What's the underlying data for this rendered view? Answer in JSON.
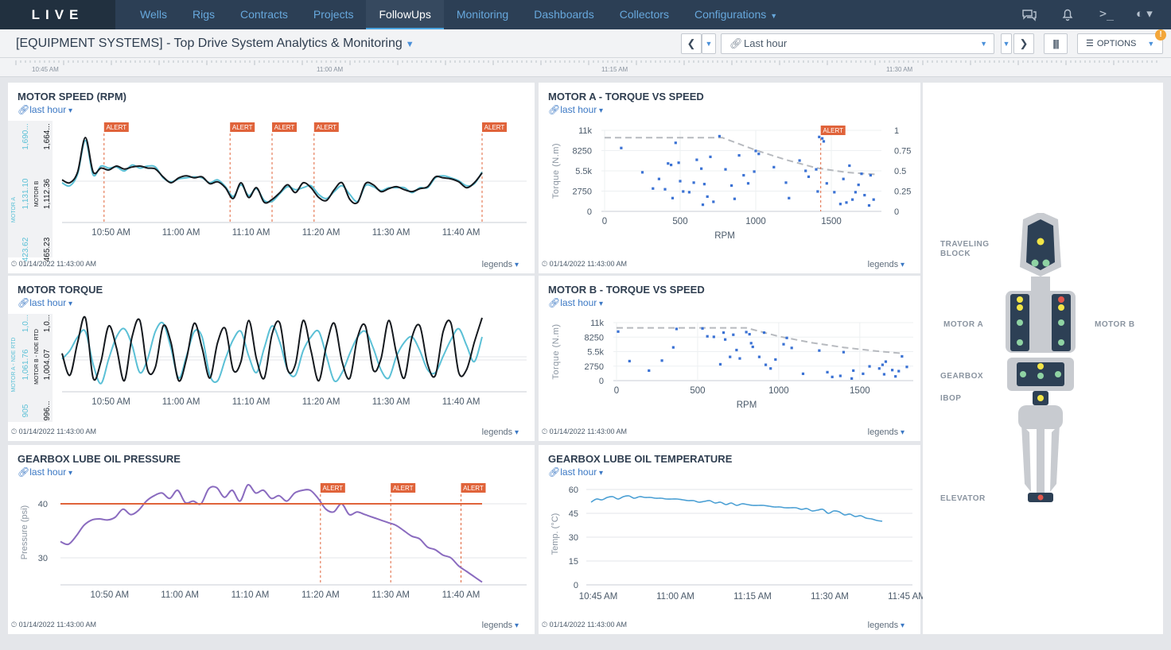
{
  "app": {
    "logo": "LIVE"
  },
  "nav": {
    "items": [
      "Wells",
      "Rigs",
      "Contracts",
      "Projects",
      "FollowUps",
      "Monitoring",
      "Dashboards",
      "Collectors",
      "Configurations"
    ],
    "active": "FollowUps"
  },
  "toolbar": {
    "page_title": "[EQUIPMENT SYSTEMS] - Top Drive System Analytics & Monitoring",
    "time_range": "Last hour",
    "options_label": "OPTIONS"
  },
  "timeline": {
    "labels": [
      "10:45 AM",
      "11:00 AM",
      "11:15 AM",
      "11:30 AM"
    ]
  },
  "common": {
    "range_link": "last hour",
    "timestamp": "01/14/2022 11:43:00 AM",
    "legends": "legends",
    "alert": "ALERT",
    "time_ticks": [
      "10:50 AM",
      "11:00 AM",
      "11:10 AM",
      "11:20 AM",
      "11:30 AM",
      "11:40 AM"
    ]
  },
  "panels": {
    "motor_speed": {
      "title": "MOTOR SPEED (RPM)"
    },
    "motor_a_tvs": {
      "title": "MOTOR A - TORQUE VS SPEED"
    },
    "motor_torque": {
      "title": "MOTOR TORQUE"
    },
    "motor_b_tvs": {
      "title": "MOTOR B - TORQUE VS SPEED"
    },
    "lube_pressure": {
      "title": "GEARBOX LUBE OIL PRESSURE"
    },
    "lube_temp": {
      "title": "GEARBOX LUBE OIL TEMPERATURE"
    }
  },
  "rig": {
    "labels": {
      "traveling_block": "TRAVELING\nBLOCK",
      "motor_a": "MOTOR A",
      "motor_b": "MOTOR B",
      "gearbox": "GEARBOX",
      "ibop": "IBOP",
      "elevator": "ELEVATOR"
    },
    "colors": {
      "yellow": "#f2e547",
      "green": "#8fd3a3",
      "red": "#e2574c",
      "body": "#c8cbd0",
      "dark": "#2d4055"
    }
  },
  "chart_data": [
    {
      "type": "line",
      "title": "MOTOR SPEED (RPM)",
      "x_ticks": [
        "10:50 AM",
        "11:00 AM",
        "11:10 AM",
        "11:20 AM",
        "11:30 AM",
        "11:40 AM"
      ],
      "alerts_x": [
        "10:49 AM",
        "11:07 AM",
        "11:13 AM",
        "11:19 AM",
        "11:43 AM"
      ],
      "axis_labels": {
        "motor_a": [
          "423.62",
          "1,131.10",
          "1,690..."
        ],
        "motor_b": [
          "465.23",
          "1,112.36",
          "1,664..."
        ]
      },
      "series": [
        {
          "name": "MOTOR A",
          "color": "#5bc0d6",
          "values": [
            1150,
            1120,
            1240,
            1580,
            1230,
            1320,
            1300,
            1310,
            1270,
            1330,
            1300,
            1320,
            1310,
            1200,
            1160,
            1190,
            1200,
            1210,
            1200,
            1150,
            1180,
            1110,
            1010,
            1130,
            1020,
            1090,
            970,
            960,
            1040,
            1110,
            1080,
            1100,
            1120,
            1030,
            990,
            1060,
            1120,
            1030,
            960,
            1120,
            1110,
            1070,
            1100,
            1100,
            1100,
            1050,
            1100,
            1100,
            1200,
            1220,
            1200,
            1170,
            1120,
            1140,
            1260
          ]
        },
        {
          "name": "MOTOR B",
          "color": "#15191e",
          "values": [
            1180,
            1150,
            1260,
            1610,
            1260,
            1300,
            1280,
            1320,
            1290,
            1310,
            1320,
            1300,
            1290,
            1210,
            1150,
            1200,
            1220,
            1200,
            1210,
            1140,
            1160,
            1100,
            990,
            1150,
            1000,
            1100,
            950,
            980,
            1050,
            1130,
            1050,
            1150,
            1100,
            1000,
            970,
            1080,
            1150,
            980,
            950,
            1140,
            1130,
            1060,
            1090,
            1110,
            1080,
            1060,
            1090,
            1110,
            1210,
            1200,
            1190,
            1160,
            1100,
            1150,
            1250
          ]
        }
      ]
    },
    {
      "type": "scatter",
      "title": "MOTOR A - TORQUE VS SPEED",
      "xlabel": "RPM",
      "ylabel": "Torque (N.m)",
      "xlim": [
        0,
        1800
      ],
      "ylim": [
        0,
        11000
      ],
      "x_ticks": [
        0,
        500,
        1000,
        1500
      ],
      "y_ticks": [
        "0",
        "2750",
        "5.5k",
        "8250",
        "11k"
      ],
      "y2_ticks": [
        "0",
        "0.25",
        "0.5",
        "0.75",
        "1"
      ],
      "alert_x": 1430,
      "limit_curve": {
        "x": [
          0,
          780,
          1000,
          1200,
          1400,
          1600,
          1800
        ],
        "y": [
          10000,
          10000,
          8300,
          7000,
          5900,
          5300,
          5000
        ]
      },
      "points": [
        [
          110,
          8600
        ],
        [
          250,
          5300
        ],
        [
          320,
          3100
        ],
        [
          360,
          4400
        ],
        [
          400,
          3000
        ],
        [
          420,
          6500
        ],
        [
          440,
          6300
        ],
        [
          450,
          1800
        ],
        [
          470,
          9300
        ],
        [
          490,
          6600
        ],
        [
          500,
          4100
        ],
        [
          520,
          2700
        ],
        [
          560,
          2600
        ],
        [
          590,
          3900
        ],
        [
          610,
          7000
        ],
        [
          640,
          5800
        ],
        [
          650,
          900
        ],
        [
          660,
          3700
        ],
        [
          680,
          2000
        ],
        [
          700,
          7400
        ],
        [
          720,
          1300
        ],
        [
          760,
          10200
        ],
        [
          800,
          5700
        ],
        [
          840,
          3500
        ],
        [
          860,
          1700
        ],
        [
          890,
          7600
        ],
        [
          920,
          4900
        ],
        [
          950,
          3800
        ],
        [
          990,
          5400
        ],
        [
          1000,
          8200
        ],
        [
          1020,
          7800
        ],
        [
          1120,
          6000
        ],
        [
          1200,
          3900
        ],
        [
          1220,
          1800
        ],
        [
          1290,
          6900
        ],
        [
          1330,
          5500
        ],
        [
          1350,
          4700
        ],
        [
          1400,
          5700
        ],
        [
          1410,
          2700
        ],
        [
          1420,
          10100
        ],
        [
          1440,
          9900
        ],
        [
          1450,
          9500
        ],
        [
          1470,
          3800
        ],
        [
          1520,
          2600
        ],
        [
          1560,
          1000
        ],
        [
          1580,
          4400
        ],
        [
          1600,
          1200
        ],
        [
          1620,
          6200
        ],
        [
          1640,
          1600
        ],
        [
          1660,
          2600
        ],
        [
          1680,
          3600
        ],
        [
          1700,
          5100
        ],
        [
          1720,
          2200
        ],
        [
          1750,
          800
        ],
        [
          1760,
          4900
        ],
        [
          1780,
          1600
        ]
      ]
    },
    {
      "type": "line",
      "title": "MOTOR TORQUE",
      "x_ticks": [
        "10:50 AM",
        "11:00 AM",
        "11:10 AM",
        "11:20 AM",
        "11:30 AM",
        "11:40 AM"
      ],
      "axis_labels": {
        "motor_a": [
          "905",
          "1,061.76",
          "1,0..."
        ],
        "motor_b": [
          "996...",
          "1,004.07",
          "1,0..."
        ]
      },
      "series": [
        {
          "name": "MOTOR A - NDE RTD",
          "color": "#5bc0d6",
          "values": [
            1000,
            1030,
            1080,
            1100,
            980,
            910,
            1000,
            1080,
            1110,
            1050,
            950,
            1000,
            1100,
            1130,
            1040,
            930,
            1010,
            1100,
            1080,
            940,
            920,
            1000,
            1070,
            1100,
            1010,
            950,
            1040,
            1120,
            1060,
            960,
            940,
            1030,
            1080,
            1100,
            1010,
            920,
            950,
            1020,
            1080,
            1100,
            1040,
            960,
            930,
            1010,
            1060,
            1080,
            1030,
            960,
            950,
            1010,
            1070,
            1110,
            1050,
            990,
            1080
          ]
        },
        {
          "name": "MOTOR B - NDE RTD",
          "color": "#15191e",
          "values": [
            1020,
            940,
            1060,
            1150,
            930,
            990,
            1120,
            1040,
            920,
            1080,
            1140,
            960,
            970,
            1120,
            1060,
            920,
            1000,
            1130,
            1040,
            930,
            1060,
            1110,
            960,
            990,
            1140,
            1000,
            930,
            1090,
            1130,
            960,
            980,
            1140,
            1030,
            920,
            1050,
            1130,
            990,
            930,
            1080,
            1120,
            960,
            1000,
            1140,
            1020,
            930,
            1080,
            1120,
            980,
            940,
            1100,
            1130,
            950,
            960,
            1060,
            1150
          ]
        }
      ]
    },
    {
      "type": "scatter",
      "title": "MOTOR B - TORQUE VS SPEED",
      "xlabel": "RPM",
      "ylabel": "Torque (N.m)",
      "xlim": [
        0,
        1800
      ],
      "ylim": [
        0,
        11000
      ],
      "x_ticks": [
        0,
        500,
        1000,
        1500
      ],
      "y_ticks": [
        "0",
        "2750",
        "5.5k",
        "8250",
        "11k"
      ],
      "limit_curve": {
        "x": [
          0,
          800,
          1000,
          1200,
          1400,
          1600,
          1750
        ],
        "y": [
          10000,
          10000,
          8400,
          7200,
          6300,
          5600,
          5200
        ]
      },
      "points": [
        [
          10,
          9300
        ],
        [
          80,
          3700
        ],
        [
          200,
          1900
        ],
        [
          280,
          3800
        ],
        [
          350,
          6300
        ],
        [
          370,
          9800
        ],
        [
          530,
          9900
        ],
        [
          560,
          8400
        ],
        [
          600,
          8300
        ],
        [
          640,
          3100
        ],
        [
          660,
          9100
        ],
        [
          670,
          7800
        ],
        [
          700,
          4500
        ],
        [
          720,
          8700
        ],
        [
          740,
          5800
        ],
        [
          760,
          4200
        ],
        [
          800,
          9200
        ],
        [
          820,
          8800
        ],
        [
          830,
          7100
        ],
        [
          840,
          6400
        ],
        [
          880,
          4500
        ],
        [
          910,
          9100
        ],
        [
          920,
          3000
        ],
        [
          950,
          2300
        ],
        [
          980,
          4000
        ],
        [
          1030,
          6900
        ],
        [
          1050,
          8100
        ],
        [
          1080,
          6200
        ],
        [
          1150,
          1300
        ],
        [
          1250,
          5700
        ],
        [
          1300,
          1600
        ],
        [
          1330,
          700
        ],
        [
          1380,
          900
        ],
        [
          1400,
          5400
        ],
        [
          1450,
          400
        ],
        [
          1460,
          1900
        ],
        [
          1520,
          1300
        ],
        [
          1560,
          2700
        ],
        [
          1620,
          2300
        ],
        [
          1640,
          3000
        ],
        [
          1650,
          1200
        ],
        [
          1660,
          3600
        ],
        [
          1700,
          2000
        ],
        [
          1720,
          800
        ],
        [
          1740,
          1800
        ],
        [
          1760,
          4600
        ],
        [
          1790,
          2600
        ]
      ]
    },
    {
      "type": "line",
      "title": "GEARBOX LUBE OIL PRESSURE",
      "ylabel": "Pressure (psi)",
      "ylim": [
        25,
        45
      ],
      "y_ticks": [
        30,
        40
      ],
      "x_ticks": [
        "10:50 AM",
        "11:00 AM",
        "11:10 AM",
        "11:20 AM",
        "11:30 AM",
        "11:40 AM"
      ],
      "threshold": 40,
      "alerts_x": [
        "11:20 AM",
        "11:30 AM",
        "11:40 AM"
      ],
      "series": [
        {
          "name": "Pressure",
          "color": "#8a6bbf",
          "values": [
            33,
            32.5,
            34,
            36,
            37,
            37.2,
            37,
            37.5,
            39,
            38,
            38.8,
            40.5,
            41.5,
            42,
            41,
            42.5,
            40.2,
            40.5,
            40,
            42.8,
            43,
            41.2,
            42.5,
            40.5,
            43.5,
            42,
            42.5,
            41,
            41.5,
            40.5,
            42,
            42.5,
            42.5,
            41,
            39,
            38.5,
            40,
            38,
            38.5,
            38,
            37.5,
            37,
            36.5,
            36,
            35,
            34,
            33.5,
            32,
            31.5,
            30.5,
            30,
            28.5,
            27.5,
            26.5,
            25.5
          ]
        }
      ]
    },
    {
      "type": "line",
      "title": "GEARBOX LUBE OIL TEMPERATURE",
      "ylabel": "Temp. (°C)",
      "ylim": [
        0,
        60
      ],
      "y_ticks": [
        0,
        15,
        30,
        45,
        60
      ],
      "x_ticks": [
        "10:45 AM",
        "11:00 AM",
        "11:15 AM",
        "11:30 AM",
        "11:45 AM"
      ],
      "series": [
        {
          "name": "Temperature",
          "color": "#4a9fd4",
          "values": [
            52,
            54,
            53.5,
            55,
            55.5,
            54,
            55.5,
            56,
            54.5,
            55.5,
            55,
            55,
            54.5,
            54.5,
            54,
            54,
            54,
            53.5,
            53,
            53,
            52,
            52.5,
            53,
            51.5,
            52,
            50.5,
            51.5,
            50,
            51,
            50.5,
            50,
            50,
            50,
            49.5,
            49,
            49,
            48.5,
            48.5,
            48.5,
            47.5,
            48,
            46.5,
            47,
            47.5,
            45,
            46.5,
            46,
            44,
            44.5,
            43,
            43.5,
            42,
            41.5,
            40.5,
            40
          ]
        }
      ]
    }
  ]
}
